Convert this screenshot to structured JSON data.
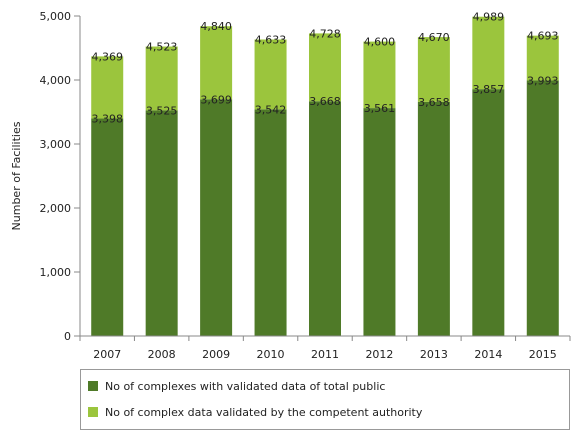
{
  "chart_data": {
    "type": "bar",
    "stacked": true,
    "categories": [
      "2007",
      "2008",
      "2009",
      "2010",
      "2011",
      "2012",
      "2013",
      "2014",
      "2015"
    ],
    "series": [
      {
        "name": "No of complexes with validated data of total public",
        "values": [
          3398,
          3525,
          3699,
          3542,
          3668,
          3561,
          3658,
          3857,
          3993
        ],
        "labels": [
          "3,398",
          "3,525",
          "3,699",
          "3,542",
          "3,668",
          "3,561",
          "3,658",
          "3,857",
          "3,993"
        ],
        "color": "#4f7a28"
      },
      {
        "name": "No of complex data validated by the competent authority",
        "values": [
          971,
          998,
          1141,
          1091,
          1060,
          1039,
          1012,
          1132,
          700
        ],
        "color": "#9bc53d"
      }
    ],
    "totals": [
      4369,
      4523,
      4840,
      4633,
      4728,
      4600,
      4670,
      4989,
      4693
    ],
    "total_labels": [
      "4,369",
      "4,523",
      "4,840",
      "4,633",
      "4,728",
      "4,600",
      "4,670",
      "4,989",
      "4,693"
    ],
    "ylabel": "Number of Facilities",
    "ylim": [
      0,
      5000
    ],
    "yticks": [
      0,
      1000,
      2000,
      3000,
      4000,
      5000
    ],
    "ytick_labels": [
      "0",
      "1,000",
      "2,000",
      "3,000",
      "4,000",
      "5,000"
    ],
    "grid": false,
    "legend_position": "bottom"
  }
}
